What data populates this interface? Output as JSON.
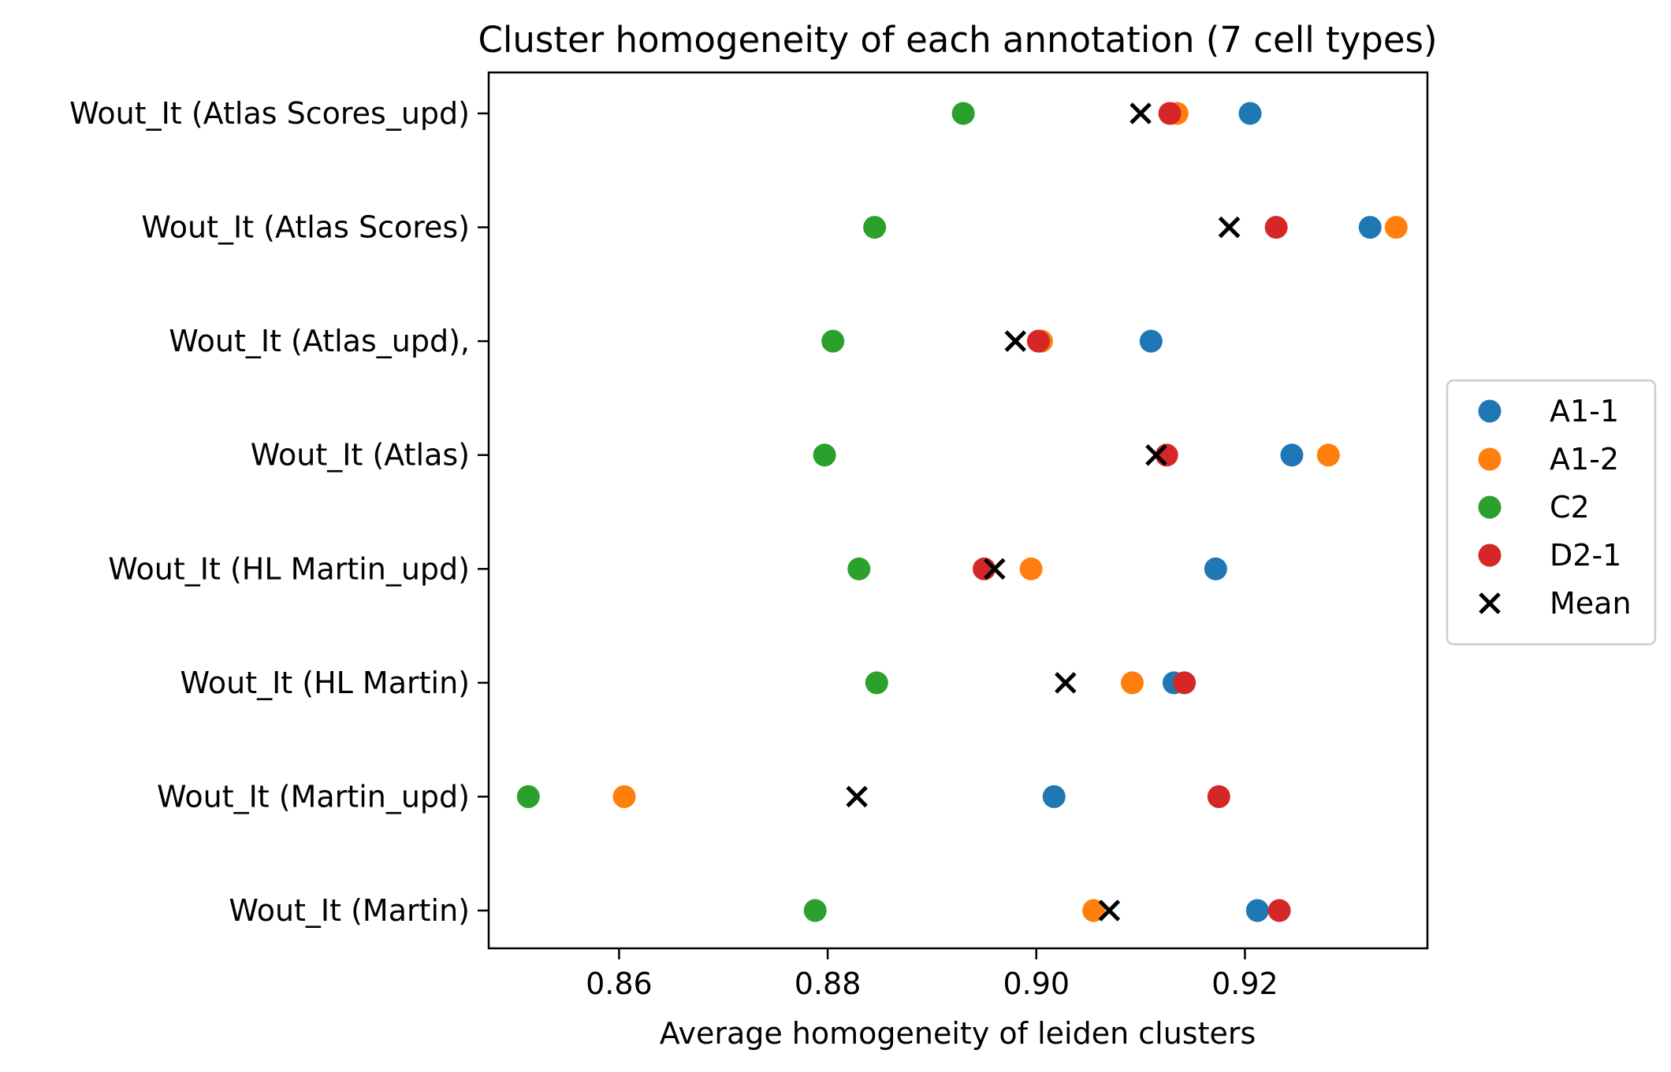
{
  "chart_data": {
    "type": "scatter",
    "title": "Cluster homogeneity of each annotation (7 cell types)",
    "xlabel": "Average homogeneity of leiden clusters",
    "ylabel": "",
    "xlim": [
      0.8475,
      0.9375
    ],
    "xticks": [
      0.86,
      0.88,
      0.9,
      0.92
    ],
    "xtick_labels": [
      "0.86",
      "0.88",
      "0.90",
      "0.92"
    ],
    "categories": [
      "Wout_It (Atlas Scores_upd)",
      "Wout_It (Atlas Scores)",
      "Wout_It (Atlas_upd),",
      "Wout_It (Atlas)",
      "Wout_It (HL Martin_upd)",
      "Wout_It (HL Martin)",
      "Wout_It (Martin_upd)",
      "Wout_It (Martin)"
    ],
    "series": [
      {
        "name": "A1-1",
        "color": "#1f77b4",
        "marker": "circle",
        "values": [
          0.9205,
          0.932,
          0.911,
          0.9245,
          0.9172,
          0.9132,
          0.9017,
          0.9212
        ]
      },
      {
        "name": "A1-2",
        "color": "#ff7f0e",
        "marker": "circle",
        "values": [
          0.9135,
          0.9345,
          0.9005,
          0.928,
          0.8995,
          0.9092,
          0.8605,
          0.9055
        ]
      },
      {
        "name": "C2",
        "color": "#2ca02c",
        "marker": "circle",
        "values": [
          0.893,
          0.8845,
          0.8805,
          0.8797,
          0.883,
          0.8847,
          0.8513,
          0.8788
        ]
      },
      {
        "name": "D2-1",
        "color": "#d62728",
        "marker": "circle",
        "values": [
          0.9128,
          0.923,
          0.9002,
          0.9125,
          0.895,
          0.9142,
          0.9175,
          0.9233
        ]
      },
      {
        "name": "Mean",
        "color": "#000000",
        "marker": "x",
        "values": [
          0.91,
          0.9185,
          0.898,
          0.9115,
          0.896,
          0.9028,
          0.8828,
          0.907
        ]
      }
    ],
    "legend_position": "center-right",
    "grid": false
  }
}
